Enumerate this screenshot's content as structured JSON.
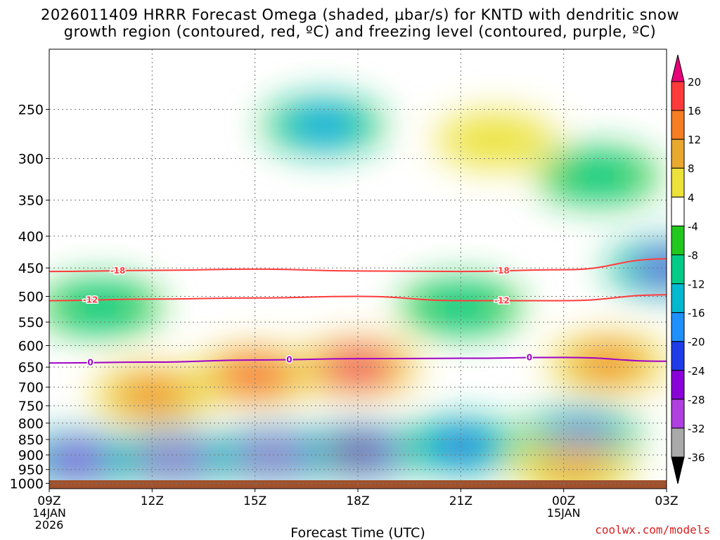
{
  "title_line1": "2026011409 HRRR Forecast Omega (shaded, μbar/s) for KNTD with dendritic snow",
  "title_line2": "growth region (contoured, red, ºC) and freezing level (contoured, purple, ºC)",
  "credit": "coolwx.com/models",
  "colors": {
    "ground": "#a0522d",
    "contour_red": "#ff3c3c",
    "contour_purple": "#a000c8"
  },
  "chart_data": {
    "type": "heatmap",
    "xlabel": "Forecast Time (UTC)",
    "x_ticks": [
      {
        "hour": 0,
        "label": "09Z",
        "sub1": "14JAN",
        "sub2": "2026"
      },
      {
        "hour": 3,
        "label": "12Z"
      },
      {
        "hour": 6,
        "label": "15Z"
      },
      {
        "hour": 9,
        "label": "18Z"
      },
      {
        "hour": 12,
        "label": "21Z"
      },
      {
        "hour": 15,
        "label": "00Z",
        "sub1": "15JAN"
      },
      {
        "hour": 18,
        "label": "03Z"
      }
    ],
    "x_range_hours": [
      0,
      18
    ],
    "ylabel": "",
    "y_ticks": [
      250,
      300,
      350,
      400,
      450,
      500,
      550,
      600,
      650,
      700,
      750,
      800,
      850,
      900,
      950,
      1000
    ],
    "y_range_hpa": [
      200,
      1020
    ],
    "y_scale": "log-pressure",
    "grid": true,
    "colorbar": {
      "labels": [
        20,
        16,
        12,
        8,
        4,
        -4,
        -8,
        -12,
        -16,
        -20,
        -24,
        -28,
        -32,
        -36
      ],
      "levels": [
        {
          "from": 20,
          "to": 24,
          "color": "#e8007a"
        },
        {
          "from": 16,
          "to": 20,
          "color": "#ff3a3a"
        },
        {
          "from": 12,
          "to": 16,
          "color": "#f57d22"
        },
        {
          "from": 8,
          "to": 12,
          "color": "#e8a92e"
        },
        {
          "from": 4,
          "to": 8,
          "color": "#ece23a"
        },
        {
          "from": -4,
          "to": 4,
          "color": "#ffffff"
        },
        {
          "from": -8,
          "to": -4,
          "color": "#22c81e"
        },
        {
          "from": -12,
          "to": -8,
          "color": "#00cc88"
        },
        {
          "from": -16,
          "to": -12,
          "color": "#00b8d0"
        },
        {
          "from": -20,
          "to": -16,
          "color": "#1e90ff"
        },
        {
          "from": -24,
          "to": -20,
          "color": "#1e3ce8"
        },
        {
          "from": -28,
          "to": -24,
          "color": "#8a00d8"
        },
        {
          "from": -32,
          "to": -28,
          "color": "#b040e0"
        },
        {
          "from": -36,
          "to": -32,
          "color": "#aaaaaa"
        },
        {
          "from": -40,
          "to": -36,
          "color": "#000000"
        }
      ]
    },
    "omega_cells": [
      {
        "hour": 9,
        "hpa": 890,
        "value": -40
      },
      {
        "hour": 6.5,
        "hpa": 900,
        "value": -38
      },
      {
        "hour": 3.6,
        "hpa": 910,
        "value": -37
      },
      {
        "hour": 0.8,
        "hpa": 915,
        "value": -34
      },
      {
        "hour": 12,
        "hpa": 870,
        "value": -26
      },
      {
        "hour": 15.5,
        "hpa": 840,
        "value": -25
      },
      {
        "hour": 18,
        "hpa": 450,
        "value": -30
      },
      {
        "hour": 8,
        "hpa": 265,
        "value": -22
      },
      {
        "hour": 9,
        "hpa": 650,
        "value": 20
      },
      {
        "hour": 6,
        "hpa": 670,
        "value": 16
      },
      {
        "hour": 3,
        "hpa": 720,
        "value": 14
      },
      {
        "hour": 16.3,
        "hpa": 640,
        "value": 15
      },
      {
        "hour": 15.3,
        "hpa": 950,
        "value": 8
      },
      {
        "hour": 13,
        "hpa": 280,
        "value": 5
      },
      {
        "hour": 1.5,
        "hpa": 520,
        "value": -14
      },
      {
        "hour": 12,
        "hpa": 520,
        "value": -13
      },
      {
        "hour": 16,
        "hpa": 320,
        "value": -12
      }
    ],
    "contours": [
      {
        "label": "-18",
        "color": "red",
        "points": [
          [
            0,
            456
          ],
          [
            3,
            454
          ],
          [
            6,
            452
          ],
          [
            9,
            455
          ],
          [
            12,
            456
          ],
          [
            15,
            453
          ],
          [
            18,
            435
          ]
        ],
        "label_hours": [
          2,
          13.2
        ]
      },
      {
        "label": "-12",
        "color": "red",
        "points": [
          [
            0,
            508
          ],
          [
            3,
            505
          ],
          [
            6,
            503
          ],
          [
            9,
            500
          ],
          [
            12,
            508
          ],
          [
            15,
            508
          ],
          [
            18,
            497
          ]
        ],
        "label_hours": [
          1.2,
          13.2
        ]
      },
      {
        "label": "0",
        "color": "purple",
        "points": [
          [
            0,
            640
          ],
          [
            3,
            638
          ],
          [
            6,
            633
          ],
          [
            9,
            630
          ],
          [
            12,
            629
          ],
          [
            15,
            627
          ],
          [
            18,
            636
          ]
        ],
        "label_hours": [
          1.2,
          7,
          14
        ]
      }
    ]
  }
}
